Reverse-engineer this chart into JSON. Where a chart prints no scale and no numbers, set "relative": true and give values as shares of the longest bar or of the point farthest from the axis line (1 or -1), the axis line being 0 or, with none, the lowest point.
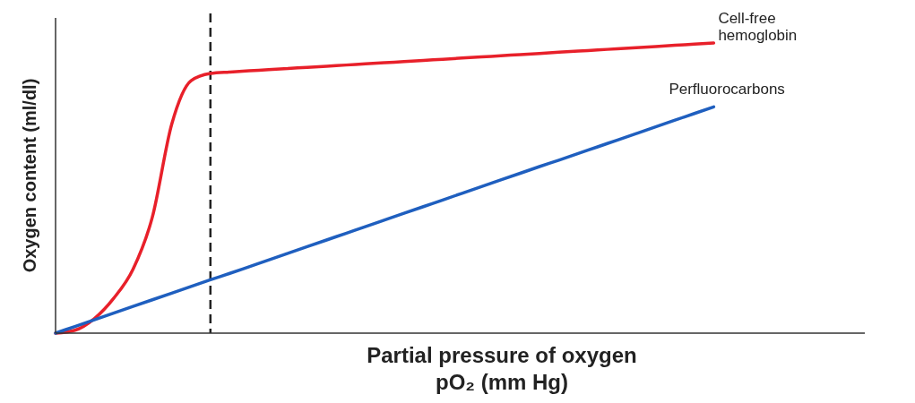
{
  "chart_data": {
    "type": "line",
    "relative": true,
    "xlabel": "Partial pressure of oxygen\npO₂ (mm Hg)",
    "ylabel": "Oxygen content (ml/dl)",
    "categories": [
      null,
      null,
      null,
      null,
      null,
      null,
      null,
      null,
      null,
      null,
      null,
      null,
      null,
      null,
      null,
      null,
      null,
      null,
      null,
      null,
      null,
      null,
      null,
      null,
      null,
      null,
      null,
      null,
      null,
      null,
      null,
      null,
      null,
      null,
      null,
      null,
      null,
      null,
      null,
      null,
      null,
      null
    ],
    "series": [
      {
        "name": "Cell-free hemoglobin",
        "color": "#e8202a",
        "values": [
          0,
          0.01,
          0.05,
          0.12,
          0.22,
          0.4,
          0.72,
          0.87,
          0.895,
          0.9,
          0.904,
          0.908,
          0.912,
          0.916,
          0.92,
          0.924,
          0.928,
          0.932,
          0.936,
          0.94,
          0.944,
          0.948,
          0.952,
          0.956,
          0.96,
          0.964,
          0.968,
          0.972,
          0.976,
          0.98,
          0.984,
          0.988,
          0.992,
          0.996,
          1,
          null,
          null,
          null,
          null,
          null,
          null,
          null
        ]
      },
      {
        "name": "Perfluorocarbons",
        "color": "#1f5fbf",
        "values": [
          0,
          0.023,
          0.046,
          0.069,
          0.092,
          0.115,
          0.138,
          0.161,
          0.184,
          0.206,
          0.229,
          0.252,
          0.275,
          0.298,
          0.321,
          0.344,
          0.367,
          0.39,
          0.413,
          0.436,
          0.459,
          0.482,
          0.505,
          0.528,
          0.551,
          0.574,
          0.596,
          0.619,
          0.642,
          0.665,
          0.688,
          0.711,
          0.734,
          0.757,
          0.78,
          null,
          null,
          null,
          null,
          null,
          null,
          null
        ]
      }
    ],
    "marker": "none",
    "line_style": "solid"
  }
}
